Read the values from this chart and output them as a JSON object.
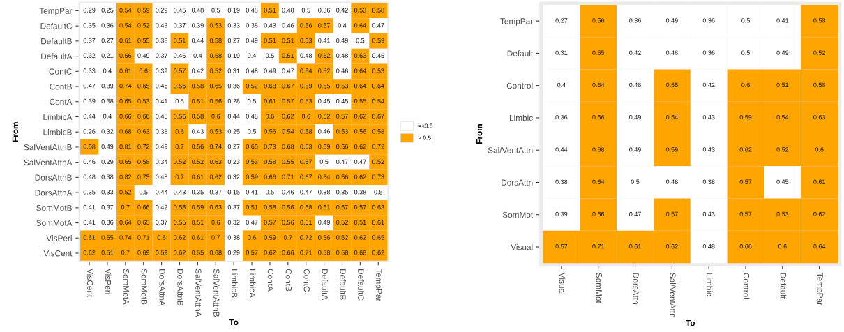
{
  "chart_data": [
    {
      "type": "heatmap",
      "xlabel": "To",
      "ylabel": "From",
      "legend": "right",
      "data_labels": true,
      "series": [
        {
          "name": "=<0.5",
          "color": "#ffffff",
          "values": [
            null,
            null,
            null,
            null,
            null,
            null,
            null,
            null,
            null,
            null,
            null,
            null,
            null,
            null,
            null,
            null,
            null
          ]
        },
        {
          "name": "> 0.5",
          "color": "#ffa500",
          "values": [
            null,
            null,
            null,
            null,
            null,
            null,
            null,
            null,
            null,
            null,
            null,
            null,
            null,
            null,
            null,
            null,
            null
          ]
        }
      ],
      "colors": [
        [
          "#ffffff",
          "#ffffff",
          "#ffa500",
          "#ffa500",
          "#ffffff",
          "#ffffff",
          "#ffffff",
          "#ffffff",
          "#ffffff",
          "#ffffff",
          "#ffa500",
          "#ffffff",
          "#ffffff",
          "#ffffff",
          "#ffffff",
          "#ffa500",
          "#ffa500"
        ],
        [
          "#ffffff",
          "#ffffff",
          "#ffa500",
          "#ffa500",
          "#ffffff",
          "#ffffff",
          "#ffffff",
          "#ffa500",
          "#ffffff",
          "#ffffff",
          "#ffffff",
          "#ffffff",
          "#ffa500",
          "#ffa500",
          "#ffffff",
          "#ffa500",
          "#ffffff"
        ],
        [
          "#ffffff",
          "#ffffff",
          "#ffa500",
          "#ffa500",
          "#ffffff",
          "#ffa500",
          "#ffffff",
          "#ffa500",
          "#ffffff",
          "#ffffff",
          "#ffa500",
          "#ffa500",
          "#ffa500",
          "#ffffff",
          "#ffffff",
          "#ffffff",
          "#ffa500"
        ],
        [
          "#ffffff",
          "#ffffff",
          "#ffa500",
          "#ffffff",
          "#ffffff",
          "#ffffff",
          "#ffffff",
          "#ffa500",
          "#ffffff",
          "#ffffff",
          "#ffffff",
          "#ffa500",
          "#ffffff",
          "#ffa500",
          "#ffffff",
          "#ffa500",
          "#ffffff"
        ],
        [
          "#ffffff",
          "#ffffff",
          "#ffa500",
          "#ffa500",
          "#ffffff",
          "#ffa500",
          "#ffffff",
          "#ffa500",
          "#ffffff",
          "#ffffff",
          "#ffffff",
          "#ffffff",
          "#ffa500",
          "#ffa500",
          "#ffffff",
          "#ffa500",
          "#ffa500"
        ],
        [
          "#ffffff",
          "#ffffff",
          "#ffa500",
          "#ffa500",
          "#ffffff",
          "#ffa500",
          "#ffa500",
          "#ffa500",
          "#ffffff",
          "#ffa500",
          "#ffa500",
          "#ffa500",
          "#ffa500",
          "#ffa500",
          "#ffa500",
          "#ffa500",
          "#ffa500"
        ],
        [
          "#ffffff",
          "#ffffff",
          "#ffa500",
          "#ffa500",
          "#ffffff",
          "#ffffff",
          "#ffa500",
          "#ffa500",
          "#ffffff",
          "#ffffff",
          "#ffa500",
          "#ffa500",
          "#ffa500",
          "#ffffff",
          "#ffffff",
          "#ffa500",
          "#ffa500"
        ],
        [
          "#ffffff",
          "#ffffff",
          "#ffa500",
          "#ffa500",
          "#ffffff",
          "#ffa500",
          "#ffa500",
          "#ffa500",
          "#ffffff",
          "#ffffff",
          "#ffa500",
          "#ffa500",
          "#ffa500",
          "#ffa500",
          "#ffa500",
          "#ffa500",
          "#ffa500"
        ],
        [
          "#ffffff",
          "#ffffff",
          "#ffa500",
          "#ffa500",
          "#ffffff",
          "#ffa500",
          "#ffffff",
          "#ffa500",
          "#ffffff",
          "#ffffff",
          "#ffa500",
          "#ffa500",
          "#ffa500",
          "#ffffff",
          "#ffa500",
          "#ffa500",
          "#ffa500"
        ],
        [
          "#ffa500",
          "#ffffff",
          "#ffa500",
          "#ffa500",
          "#ffffff",
          "#ffa500",
          "#ffa500",
          "#ffa500",
          "#ffffff",
          "#ffa500",
          "#ffa500",
          "#ffa500",
          "#ffa500",
          "#ffa500",
          "#ffa500",
          "#ffa500",
          "#ffa500"
        ],
        [
          "#ffffff",
          "#ffffff",
          "#ffa500",
          "#ffa500",
          "#ffffff",
          "#ffa500",
          "#ffa500",
          "#ffa500",
          "#ffffff",
          "#ffa500",
          "#ffa500",
          "#ffa500",
          "#ffa500",
          "#ffffff",
          "#ffffff",
          "#ffffff",
          "#ffa500"
        ],
        [
          "#ffffff",
          "#ffffff",
          "#ffa500",
          "#ffa500",
          "#ffffff",
          "#ffa500",
          "#ffa500",
          "#ffa500",
          "#ffffff",
          "#ffa500",
          "#ffa500",
          "#ffa500",
          "#ffa500",
          "#ffa500",
          "#ffa500",
          "#ffa500",
          "#ffa500"
        ],
        [
          "#ffffff",
          "#ffffff",
          "#ffa500",
          "#ffffff",
          "#ffffff",
          "#ffffff",
          "#ffffff",
          "#ffffff",
          "#ffffff",
          "#ffffff",
          "#ffffff",
          "#ffffff",
          "#ffffff",
          "#ffffff",
          "#ffffff",
          "#ffffff",
          "#ffffff"
        ],
        [
          "#ffffff",
          "#ffffff",
          "#ffa500",
          "#ffa500",
          "#ffffff",
          "#ffa500",
          "#ffa500",
          "#ffa500",
          "#ffffff",
          "#ffa500",
          "#ffa500",
          "#ffa500",
          "#ffa500",
          "#ffa500",
          "#ffa500",
          "#ffa500",
          "#ffa500"
        ],
        [
          "#ffffff",
          "#ffffff",
          "#ffa500",
          "#ffa500",
          "#ffffff",
          "#ffa500",
          "#ffa500",
          "#ffa500",
          "#ffffff",
          "#ffffff",
          "#ffa500",
          "#ffa500",
          "#ffa500",
          "#ffffff",
          "#ffa500",
          "#ffa500",
          "#ffa500"
        ],
        [
          "#ffa500",
          "#ffa500",
          "#ffa500",
          "#ffa500",
          "#ffa500",
          "#ffa500",
          "#ffa500",
          "#ffa500",
          "#ffffff",
          "#ffa500",
          "#ffa500",
          "#ffa500",
          "#ffa500",
          "#ffa500",
          "#ffa500",
          "#ffa500",
          "#ffa500"
        ],
        [
          "#ffa500",
          "#ffa500",
          "#ffa500",
          "#ffa500",
          "#ffa500",
          "#ffa500",
          "#ffa500",
          "#ffa500",
          "#ffffff",
          "#ffa500",
          "#ffa500",
          "#ffa500",
          "#ffa500",
          "#ffa500",
          "#ffa500",
          "#ffa500",
          "#ffa500"
        ]
      ],
      "categories": [
        "VisCent",
        "VisPeri",
        "SomMotA",
        "SomMotB",
        "DorsAttnA",
        "DorsAttnB",
        "SalVentAttnA",
        "SalVentAttnB",
        "LimbicB",
        "LimbicA",
        "ContA",
        "ContB",
        "ContC",
        "DefaultA",
        "DefaultB",
        "DefaultC",
        "TempPar"
      ],
      "y_categories": [
        "TempPar",
        "DefaultC",
        "DefaultB",
        "DefaultA",
        "ContC",
        "ContB",
        "ContA",
        "LimbicA",
        "LimbicB",
        "SalVentAttnB",
        "SalVentAttnA",
        "DorsAttnB",
        "DorsAttnA",
        "SomMotB",
        "SomMotA",
        "VisPeri",
        "VisCent"
      ],
      "cells": [
        [
          0.29,
          0.25,
          0.54,
          0.59,
          0.29,
          0.45,
          0.48,
          0.5,
          0.19,
          0.48,
          0.51,
          0.48,
          0.5,
          0.36,
          0.42,
          0.53,
          0.58
        ],
        [
          0.35,
          0.36,
          0.54,
          0.52,
          0.43,
          0.37,
          0.39,
          0.53,
          0.33,
          0.38,
          0.43,
          0.46,
          0.56,
          0.57,
          0.4,
          0.64,
          0.47
        ],
        [
          0.37,
          0.27,
          0.61,
          0.55,
          0.38,
          0.51,
          0.44,
          0.58,
          0.27,
          0.49,
          0.51,
          0.51,
          0.53,
          0.41,
          0.49,
          0.5,
          0.59
        ],
        [
          0.32,
          0.21,
          0.56,
          0.49,
          0.37,
          0.45,
          0.4,
          0.58,
          0.19,
          0.4,
          0.5,
          0.51,
          0.48,
          0.52,
          0.48,
          0.63,
          0.45
        ],
        [
          0.33,
          0.4,
          0.61,
          0.6,
          0.39,
          0.57,
          0.42,
          0.52,
          0.31,
          0.48,
          0.49,
          0.47,
          0.64,
          0.52,
          0.46,
          0.64,
          0.53
        ],
        [
          0.47,
          0.39,
          0.74,
          0.65,
          0.46,
          0.56,
          0.58,
          0.65,
          0.36,
          0.52,
          0.68,
          0.67,
          0.59,
          0.55,
          0.53,
          0.64,
          0.64
        ],
        [
          0.39,
          0.38,
          0.65,
          0.53,
          0.41,
          0.5,
          0.51,
          0.56,
          0.28,
          0.5,
          0.61,
          0.57,
          0.53,
          0.45,
          0.45,
          0.55,
          0.54
        ],
        [
          0.44,
          0.4,
          0.66,
          0.66,
          0.45,
          0.56,
          0.58,
          0.6,
          0.44,
          0.48,
          0.6,
          0.62,
          0.6,
          0.52,
          0.57,
          0.62,
          0.67
        ],
        [
          0.26,
          0.32,
          0.68,
          0.63,
          0.38,
          0.6,
          0.43,
          0.53,
          0.25,
          0.5,
          0.56,
          0.54,
          0.58,
          0.46,
          0.53,
          0.56,
          0.58
        ],
        [
          0.58,
          0.49,
          0.81,
          0.72,
          0.49,
          0.7,
          0.56,
          0.74,
          0.27,
          0.65,
          0.73,
          0.68,
          0.63,
          0.59,
          0.56,
          0.62,
          0.72
        ],
        [
          0.46,
          0.29,
          0.65,
          0.58,
          0.34,
          0.52,
          0.52,
          0.63,
          0.23,
          0.53,
          0.58,
          0.55,
          0.57,
          0.5,
          0.47,
          0.47,
          0.52
        ],
        [
          0.48,
          0.38,
          0.82,
          0.75,
          0.48,
          0.7,
          0.61,
          0.62,
          0.32,
          0.59,
          0.66,
          0.71,
          0.67,
          0.54,
          0.56,
          0.62,
          0.73
        ],
        [
          0.35,
          0.33,
          0.52,
          0.5,
          0.44,
          0.43,
          0.35,
          0.37,
          0.15,
          0.41,
          0.5,
          0.46,
          0.47,
          0.38,
          0.35,
          0.38,
          0.5
        ],
        [
          0.41,
          0.37,
          0.7,
          0.66,
          0.42,
          0.58,
          0.59,
          0.63,
          0.37,
          0.51,
          0.58,
          0.56,
          0.58,
          0.51,
          0.57,
          0.57,
          0.63
        ],
        [
          0.41,
          0.36,
          0.64,
          0.65,
          0.37,
          0.55,
          0.51,
          0.6,
          0.32,
          0.47,
          0.57,
          0.56,
          0.61,
          0.49,
          0.52,
          0.51,
          0.61
        ],
        [
          0.61,
          0.55,
          0.74,
          0.71,
          0.6,
          0.62,
          0.61,
          0.7,
          0.38,
          0.6,
          0.59,
          0.7,
          0.72,
          0.56,
          0.62,
          0.62,
          0.65
        ],
        [
          0.62,
          0.51,
          0.7,
          0.69,
          0.59,
          0.62,
          0.55,
          0.68,
          0.29,
          0.57,
          0.62,
          0.66,
          0.71,
          0.58,
          0.58,
          0.68,
          0.62
        ]
      ]
    },
    {
      "type": "heatmap",
      "xlabel": "To",
      "ylabel": "From",
      "data_labels": true,
      "colors": [
        [
          "#ffffff",
          "#ffa500",
          "#ffffff",
          "#ffffff",
          "#ffffff",
          "#ffffff",
          "#ffffff",
          "#ffa500"
        ],
        [
          "#ffffff",
          "#ffa500",
          "#ffffff",
          "#ffffff",
          "#ffffff",
          "#ffffff",
          "#ffffff",
          "#ffa500"
        ],
        [
          "#ffffff",
          "#ffa500",
          "#ffffff",
          "#ffa500",
          "#ffffff",
          "#ffa500",
          "#ffa500",
          "#ffa500"
        ],
        [
          "#ffffff",
          "#ffa500",
          "#ffffff",
          "#ffa500",
          "#ffffff",
          "#ffa500",
          "#ffa500",
          "#ffa500"
        ],
        [
          "#ffffff",
          "#ffa500",
          "#ffffff",
          "#ffa500",
          "#ffffff",
          "#ffa500",
          "#ffa500",
          "#ffa500"
        ],
        [
          "#ffffff",
          "#ffa500",
          "#ffffff",
          "#ffffff",
          "#ffffff",
          "#ffa500",
          "#ffffff",
          "#ffa500"
        ],
        [
          "#ffffff",
          "#ffa500",
          "#ffffff",
          "#ffa500",
          "#ffffff",
          "#ffa500",
          "#ffa500",
          "#ffa500"
        ],
        [
          "#ffa500",
          "#ffa500",
          "#ffa500",
          "#ffa500",
          "#ffffff",
          "#ffa500",
          "#ffa500",
          "#ffa500"
        ]
      ],
      "categories": [
        "Visual",
        "SomMot",
        "DorsAttn",
        "Sal/VentAttn",
        "Limbic",
        "Control",
        "Default",
        "TempPar"
      ],
      "y_categories": [
        "TempPar",
        "Default",
        "Control",
        "Limbic",
        "Sal/VentAttn",
        "DorsAttn",
        "SomMot",
        "Visual"
      ],
      "cells": [
        [
          0.27,
          0.56,
          0.36,
          0.49,
          0.36,
          0.5,
          0.41,
          0.58
        ],
        [
          0.31,
          0.55,
          0.42,
          0.48,
          0.36,
          0.5,
          0.49,
          0.52
        ],
        [
          0.4,
          0.64,
          0.48,
          0.55,
          0.42,
          0.6,
          0.51,
          0.58
        ],
        [
          0.36,
          0.66,
          0.49,
          0.54,
          0.43,
          0.59,
          0.54,
          0.63
        ],
        [
          0.44,
          0.68,
          0.49,
          0.59,
          0.43,
          0.62,
          0.52,
          0.6
        ],
        [
          0.38,
          0.64,
          0.5,
          0.48,
          0.38,
          0.57,
          0.45,
          0.61
        ],
        [
          0.39,
          0.66,
          0.47,
          0.57,
          0.43,
          0.57,
          0.53,
          0.62
        ],
        [
          0.57,
          0.71,
          0.61,
          0.62,
          0.48,
          0.66,
          0.6,
          0.64
        ]
      ]
    }
  ]
}
